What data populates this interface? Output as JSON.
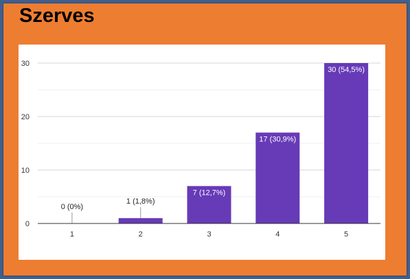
{
  "chart_data": {
    "type": "bar",
    "title": "Szerves",
    "categories": [
      "1",
      "2",
      "3",
      "4",
      "5"
    ],
    "values": [
      0,
      1,
      7,
      17,
      30
    ],
    "data_labels": [
      "0 (0%)",
      "1 (1,8%)",
      "7 (12,7%)",
      "17 (30,9%)",
      "30 (54,5%)"
    ],
    "ylim": [
      0,
      30
    ],
    "yticks": [
      0,
      10,
      20,
      30
    ],
    "bar_color": "#673ab7",
    "grid": true,
    "legend": "none"
  }
}
